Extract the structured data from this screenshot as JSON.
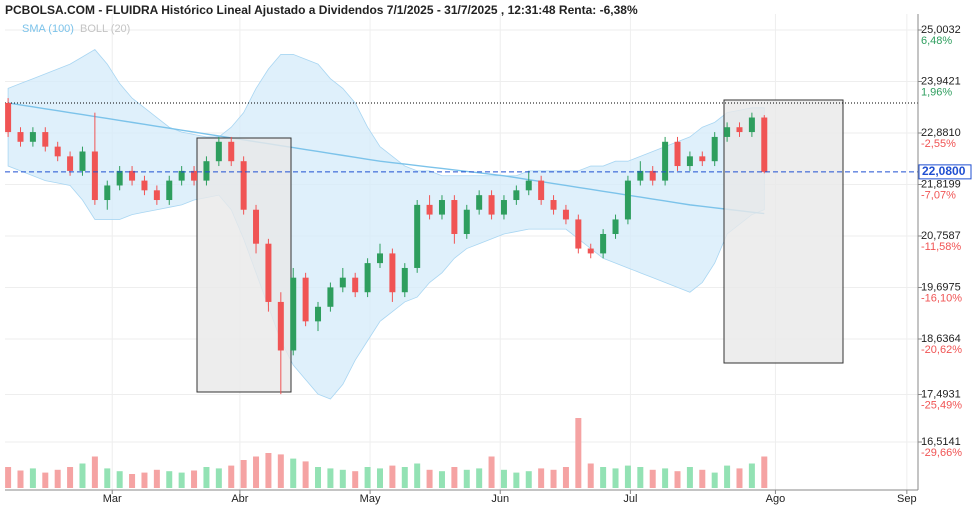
{
  "chart_data": {
    "type": "candlestick",
    "title": "PCBOLSA.COM - FLUIDRA Histórico Lineal Ajustado a Dividendos 7/1/2025 - 31/7/2025 , 12:31:48 Renta: -6,38%",
    "legend": [
      "SMA (100)",
      "BOLL (20)"
    ],
    "up_color": "#2e9e5e",
    "down_color": "#f05454",
    "volume_up_color": "#93e2b4",
    "volume_down_color": "#f5a3a3",
    "sma_color": "#7cc3ea",
    "band_color": "#d4ebfa",
    "grid": true,
    "xlim": [
      -0.25,
      73.4
    ],
    "ylim": [
      15.525,
      25.333
    ],
    "xticks": [
      {
        "value": 8.4,
        "label": "Mar"
      },
      {
        "value": 18.7,
        "label": "Abr"
      },
      {
        "value": 29.2,
        "label": "May"
      },
      {
        "value": 39.7,
        "label": "Jun"
      },
      {
        "value": 50.2,
        "label": "Jul"
      },
      {
        "value": 61.9,
        "label": "Ago"
      },
      {
        "value": 72.5,
        "label": "Sep"
      }
    ],
    "yticks": [
      {
        "value": 25.0032,
        "label": "25,0032"
      },
      {
        "value": 23.9421,
        "label": "23,9421"
      },
      {
        "value": 22.881,
        "label": "22,8810"
      },
      {
        "value": 21.8199,
        "label": "21,8199"
      },
      {
        "value": 20.7587,
        "label": "20,7587"
      },
      {
        "value": 19.6975,
        "label": "19,6975"
      },
      {
        "value": 18.6364,
        "label": "18,6364"
      },
      {
        "value": 17.4931,
        "label": "17,4931"
      },
      {
        "value": 16.5141,
        "label": "16,5141"
      }
    ],
    "ytick_pct": [
      {
        "value": 6.48,
        "label": "6,48%"
      },
      {
        "value": 1.96,
        "label": "1,96%"
      },
      {
        "value": -2.55,
        "label": "-2,55%"
      },
      {
        "value": -7.07,
        "label": "-7,07%"
      },
      {
        "value": -11.58,
        "label": "-11,58%"
      },
      {
        "value": -16.1,
        "label": "-16,10%"
      },
      {
        "value": -20.62,
        "label": "-20,62%"
      },
      {
        "value": -25.49,
        "label": "-25,49%"
      },
      {
        "value": -29.66,
        "label": "-29,66%"
      }
    ],
    "ref_line": 23.5,
    "last_price": {
      "value": 22.08,
      "label": "22,0800"
    },
    "ohlc": [
      [
        23.5,
        23.6,
        22.8,
        22.9
      ],
      [
        22.9,
        23.0,
        22.6,
        22.7
      ],
      [
        22.7,
        23.0,
        22.6,
        22.9
      ],
      [
        22.9,
        23.0,
        22.5,
        22.6
      ],
      [
        22.6,
        22.7,
        22.3,
        22.4
      ],
      [
        22.4,
        22.5,
        22.0,
        22.1
      ],
      [
        22.1,
        22.6,
        22.0,
        22.5
      ],
      [
        22.5,
        23.3,
        21.4,
        21.5
      ],
      [
        21.5,
        21.9,
        21.3,
        21.8
      ],
      [
        21.8,
        22.2,
        21.7,
        22.1
      ],
      [
        22.1,
        22.2,
        21.8,
        21.9
      ],
      [
        21.9,
        22.0,
        21.6,
        21.7
      ],
      [
        21.7,
        21.8,
        21.4,
        21.5
      ],
      [
        21.5,
        22.0,
        21.4,
        21.9
      ],
      [
        21.9,
        22.2,
        21.8,
        22.1
      ],
      [
        22.1,
        22.2,
        21.8,
        21.9
      ],
      [
        21.9,
        22.4,
        21.8,
        22.3
      ],
      [
        22.3,
        22.8,
        22.2,
        22.7
      ],
      [
        22.7,
        22.8,
        22.2,
        22.3
      ],
      [
        22.3,
        22.4,
        21.2,
        21.3
      ],
      [
        21.3,
        21.4,
        20.4,
        20.6
      ],
      [
        20.6,
        20.7,
        19.2,
        19.4
      ],
      [
        19.4,
        19.6,
        17.5,
        18.4
      ],
      [
        18.4,
        20.1,
        18.3,
        19.9
      ],
      [
        19.9,
        20.0,
        18.9,
        19.0
      ],
      [
        19.0,
        19.4,
        18.8,
        19.3
      ],
      [
        19.3,
        19.8,
        19.2,
        19.7
      ],
      [
        19.7,
        20.1,
        19.6,
        19.9
      ],
      [
        19.9,
        20.0,
        19.5,
        19.6
      ],
      [
        19.6,
        20.3,
        19.5,
        20.2
      ],
      [
        20.2,
        20.6,
        20.1,
        20.4
      ],
      [
        20.4,
        20.5,
        19.4,
        19.6
      ],
      [
        19.6,
        20.2,
        19.5,
        20.1
      ],
      [
        20.1,
        21.5,
        20.0,
        21.4
      ],
      [
        21.4,
        21.6,
        21.1,
        21.2
      ],
      [
        21.2,
        21.6,
        21.1,
        21.5
      ],
      [
        21.5,
        21.6,
        20.6,
        20.8
      ],
      [
        20.8,
        21.4,
        20.7,
        21.3
      ],
      [
        21.3,
        21.7,
        21.2,
        21.6
      ],
      [
        21.6,
        21.7,
        21.1,
        21.2
      ],
      [
        21.2,
        21.6,
        21.1,
        21.5
      ],
      [
        21.5,
        21.8,
        21.4,
        21.7
      ],
      [
        21.7,
        22.1,
        21.6,
        21.9
      ],
      [
        21.9,
        22.0,
        21.4,
        21.5
      ],
      [
        21.5,
        21.6,
        21.2,
        21.3
      ],
      [
        21.3,
        21.4,
        21.0,
        21.1
      ],
      [
        21.1,
        21.2,
        20.4,
        20.5
      ],
      [
        20.5,
        20.6,
        20.3,
        20.4
      ],
      [
        20.4,
        20.9,
        20.3,
        20.8
      ],
      [
        20.8,
        21.2,
        20.7,
        21.1
      ],
      [
        21.1,
        22.0,
        21.0,
        21.9
      ],
      [
        21.9,
        22.3,
        21.8,
        22.1
      ],
      [
        22.1,
        22.2,
        21.8,
        21.9
      ],
      [
        21.9,
        22.8,
        21.8,
        22.7
      ],
      [
        22.7,
        22.8,
        22.1,
        22.2
      ],
      [
        22.2,
        22.5,
        22.1,
        22.4
      ],
      [
        22.4,
        22.5,
        22.2,
        22.3
      ],
      [
        22.3,
        22.9,
        22.2,
        22.8
      ],
      [
        22.8,
        23.1,
        22.7,
        23.0
      ],
      [
        23.0,
        23.1,
        22.8,
        22.9
      ],
      [
        22.9,
        23.3,
        22.8,
        23.2
      ],
      [
        23.2,
        23.25,
        22.05,
        22.08
      ]
    ],
    "volume": [
      30,
      25,
      28,
      22,
      26,
      30,
      35,
      45,
      28,
      24,
      20,
      22,
      26,
      24,
      22,
      25,
      30,
      28,
      32,
      40,
      45,
      50,
      48,
      42,
      38,
      30,
      28,
      26,
      24,
      30,
      28,
      32,
      30,
      35,
      26,
      24,
      30,
      26,
      28,
      45,
      26,
      22,
      24,
      28,
      26,
      30,
      100,
      35,
      30,
      28,
      32,
      30,
      26,
      28,
      24,
      30,
      26,
      22,
      32,
      28,
      35,
      45
    ],
    "sma": [
      23.5,
      23.46,
      23.42,
      23.38,
      23.34,
      23.3,
      23.26,
      23.22,
      23.18,
      23.14,
      23.1,
      23.06,
      23.02,
      22.98,
      22.94,
      22.9,
      22.86,
      22.82,
      22.78,
      22.74,
      22.7,
      22.66,
      22.62,
      22.58,
      22.54,
      22.5,
      22.46,
      22.42,
      22.38,
      22.34,
      22.3,
      22.27,
      22.24,
      22.21,
      22.18,
      22.15,
      22.12,
      22.09,
      22.06,
      22.03,
      22.0,
      21.96,
      21.92,
      21.88,
      21.84,
      21.8,
      21.76,
      21.72,
      21.68,
      21.64,
      21.6,
      21.56,
      21.52,
      21.48,
      21.44,
      21.4,
      21.37,
      21.34,
      21.31,
      21.28,
      21.25,
      21.22
    ],
    "boll_upper": [
      23.8,
      23.9,
      24.0,
      24.1,
      24.2,
      24.3,
      24.45,
      24.6,
      24.3,
      23.9,
      23.6,
      23.4,
      23.2,
      23.0,
      22.9,
      22.85,
      22.8,
      22.8,
      23.0,
      23.3,
      23.8,
      24.2,
      24.5,
      24.5,
      24.4,
      24.3,
      24.0,
      23.8,
      23.5,
      23.0,
      22.6,
      22.4,
      22.2,
      22.1,
      22.1,
      22.0,
      22.0,
      22.0,
      22.0,
      22.0,
      22.0,
      22.0,
      22.1,
      22.1,
      22.1,
      22.1,
      22.1,
      22.2,
      22.2,
      22.3,
      22.3,
      22.4,
      22.5,
      22.6,
      22.7,
      22.8,
      23.0,
      23.1,
      23.3,
      23.35,
      23.4,
      23.4
    ],
    "boll_lower": [
      22.2,
      22.1,
      22.0,
      21.9,
      21.85,
      21.8,
      21.5,
      21.1,
      21.1,
      21.1,
      21.2,
      21.25,
      21.3,
      21.35,
      21.4,
      21.5,
      21.55,
      21.6,
      21.3,
      20.7,
      20.0,
      19.3,
      18.6,
      18.1,
      17.8,
      17.5,
      17.4,
      17.7,
      18.2,
      18.6,
      19.0,
      19.2,
      19.4,
      19.5,
      19.8,
      20.0,
      20.3,
      20.5,
      20.6,
      20.7,
      20.8,
      20.85,
      20.9,
      20.9,
      20.9,
      20.9,
      20.7,
      20.5,
      20.3,
      20.2,
      20.1,
      20.0,
      19.9,
      19.8,
      19.7,
      19.6,
      19.8,
      20.2,
      20.8,
      21.0,
      21.2,
      21.3
    ]
  }
}
